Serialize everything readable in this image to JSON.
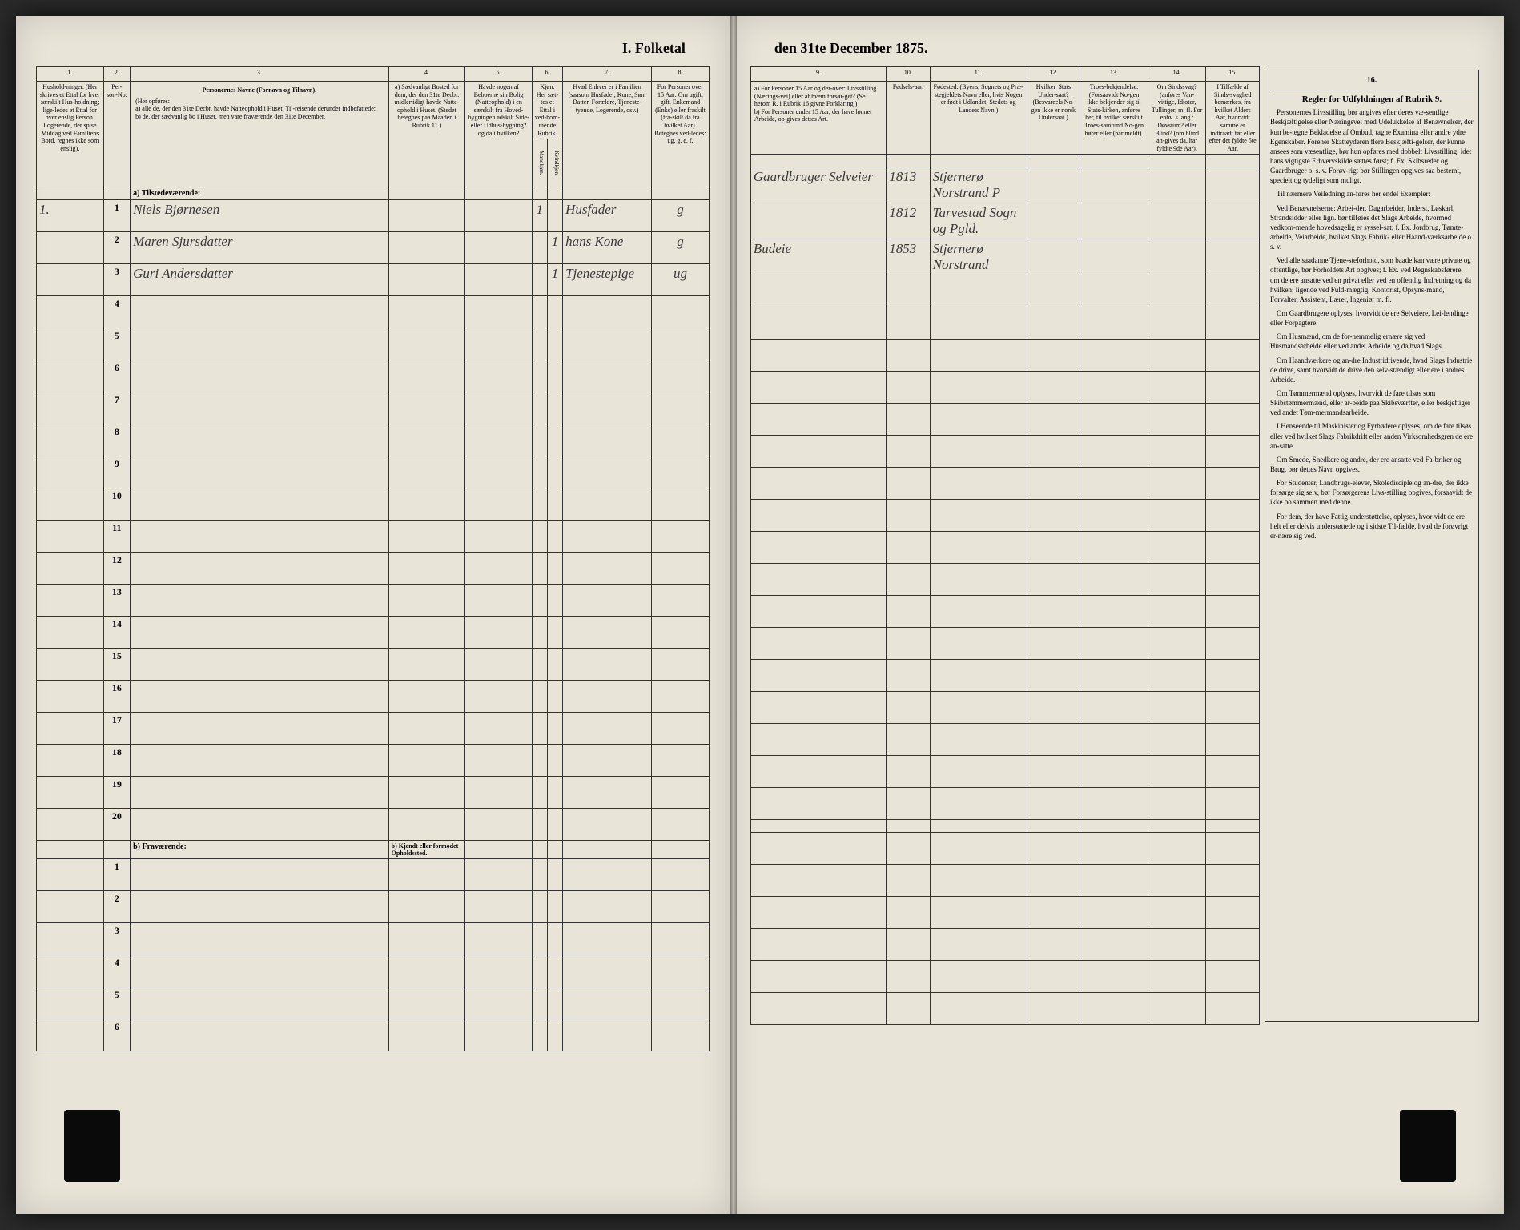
{
  "title_left": "I. Folketal",
  "title_right": "den 31te December 1875.",
  "columns_left": {
    "c1": "1.",
    "c2": "2.",
    "c3": "3.",
    "c4": "4.",
    "c5": "5.",
    "c6": "6.",
    "c7": "7.",
    "c8": "8."
  },
  "columns_right": {
    "c9": "9.",
    "c10": "10.",
    "c11": "11.",
    "c12": "12.",
    "c13": "13.",
    "c14": "14.",
    "c15": "15.",
    "c16": "16."
  },
  "headers_left": {
    "h1": "Hushold-ninger. (Her skrives et Ettal for hver særskilt Hus-holdning; lige-ledes et Ettal for hver enslig Person. Logerende, der spise Middag ved Familiens Bord, regnes ikke som enslig).",
    "h2": "Per-son-No.",
    "h3_main": "Personernes Navne (Fornavn og Tilnavn).",
    "h3_sub": "(Her opføres:\na) alle de, der den 31te Decbr. havde Natteophold i Huset, Til-reisende derunder indbefattede;\nb) de, der sædvanlig bo i Huset, men vare fraværende den 31te December.",
    "h4": "a) Sædvanligt Bosted for dem, der den 31te Decbr. midlertidigt havde Natte-ophold i Huset. (Stedet betegnes paa Maaden i Rubrik 11.)",
    "h5": "Havde nogen af Beboerne sin Bolig (Natteophold) i en særskilt fra Hoved-bygningen adskilt Side- eller Udhus-bygning? og da i hvilken?",
    "h6a": "Kjøn: Her sæt-tes et Ettal i ved-hom-mende Rubrik.",
    "h6_m": "Mandkjøn.",
    "h6_k": "Kvindkjøn.",
    "h7": "Hvad Enhver er i Familien (saasom Husfader, Kone, Søn, Datter, Forældre, Tjeneste-tyende, Logerende, osv.)",
    "h8": "For Personer over 15 Aar: Om ugift, gift, Enkemand (Enke) eller fraskilt (fra-skilt da fra hvilket Aar). Betegnes ved-ledes: ug, g, e, f."
  },
  "headers_right": {
    "h9": "a) For Personer 15 Aar og der-over: Livsstilling (Nærings-vei) eller af hvem forsør-get? (Se herom R. i Rubrik 16 givne Forklaring.)\nb) For Personer under 15 Aar, der have lønnet Arbeide, op-gives dettes Art.",
    "h10": "Fødsels-aar.",
    "h11": "Fødested. (Byens, Sognets og Præ-stegjeldets Navn eller, hvis Nogen er født i Udlandet, Stedets og Landets Navn.)",
    "h12": "Hvilken Stats Under-saat? (Besvareels No-gen ikke er norsk Undersaat.)",
    "h13": "Troes-bekjendelse. (Forsaavidt No-gen ikke bekjender sig til Stats-kirken, anføres her, til hvilket særskilt Troes-samfund No-gen hører eller (har meldt).",
    "h14": "Om Sindssvag? (anføres Van-vittige, Idioter, Tullinger, m. fl.\nFor enhv. s. ang.: Døvstum? eller Blind? (om blind an-gives da, har fyldte 9de Aar).",
    "h15": "I Tilfælde af Sinds-svaghed bemærkes, fra hvilket Alders Aar, hvorvidt samme er indtraadt før eller efter det fyldte 5te Aar."
  },
  "section_a": "a) Tilstedeværende:",
  "section_b": "b) Fraværende:",
  "section_b2": "b) Kjendt eller formodet Opholdssted.",
  "rows": [
    {
      "num": "1",
      "name": "Niels Bjørnesen",
      "c5": "",
      "c6m": "1",
      "c6k": "",
      "c7": "Husfader",
      "c8": "g",
      "c9": "Gaardbruger Selveier",
      "c10": "1813",
      "c11": "Stjernerø Norstrand P"
    },
    {
      "num": "2",
      "name": "Maren Sjursdatter",
      "c5": "",
      "c6m": "",
      "c6k": "1",
      "c7": "hans Kone",
      "c8": "g",
      "c9": "",
      "c10": "1812",
      "c11": "Tarvestad Sogn og Pgld."
    },
    {
      "num": "3",
      "name": "Guri Andersdatter",
      "c5": "",
      "c6m": "",
      "c6k": "1",
      "c7": "Tjenestepige",
      "c8": "ug",
      "c9": "Budeie",
      "c10": "1853",
      "c11": "Stjernerø Norstrand"
    }
  ],
  "empty_rows_a": [
    "4",
    "5",
    "6",
    "7",
    "8",
    "9",
    "10",
    "11",
    "12",
    "13",
    "14",
    "15",
    "16",
    "17",
    "18",
    "19",
    "20"
  ],
  "empty_rows_b": [
    "1",
    "2",
    "3",
    "4",
    "5",
    "6"
  ],
  "instructions": {
    "title": "Regler for Udfyldningen af Rubrik 9.",
    "paragraphs": [
      "Personernes Livsstilling bør angives efter deres væ-sentlige Beskjæftigelse eller Næringsvei med Udelukkelse af Benævnelser, der kun be-tegne Bekladelse af Ombud, tagne Examina eller andre ydre Egenskaber. Forener Skatteyderen flere Beskjæfti-gelser, der kunne ansees som væsentlige, bør hun opføres med dobbelt Livsstilling, idet hans vigtigste Erhvervskilde sættes først; f. Ex. Skibsreder og Gaardbruger o. s. v. Forøv-rigt bør Stillingen opgives saa bestemt, specielt og tydeligt som muligt.",
      "Til nærmere Veiledning an-føres her endel Exempler:",
      "Ved Benævnelserne: Arbei-der, Dagarbeider, Inderst, Løskarl, Strandsidder eller lign. bør tilføies det Slags Arbeide, hvormed vedkom-mende hovedsagelig er syssel-sat; f. Ex. Jordbrug, Tømte-arbeide, Veiarbeide, hvilket Slags Fabrik- eller Haand-værksarbeide o. s. v.",
      "Ved alle saadanne Tjene-steforhold, som baade kan være private og offentlige, bør Forholdets Art opgives; f. Ex. ved Regnskabsførere, om de ere ansatte ved en privat eller ved en offentlig Indretning og da hvilken; ligende ved Fuld-mægtig, Kontorist, Opsyns-mand, Forvalter, Assistent, Lærer, Ingeniør m. fl.",
      "Om Gaardbrugere oplyses, hvorvidt de ere Selveiere, Lei-lendinge eller Forpagtere.",
      "Om Husmænd, om de for-nemmelig ernære sig ved Husmandsarbeide eller ved andet Arbeide og da hvad Slags.",
      "Om Haandværkere og an-dre Industridrivende, hvad Slags Industrie de drive, samt hvorvidt de drive den selv-stændigt eller ere i andres Arbeide.",
      "Om Tømmermænd oplyses, hvorvidt de fare tilsøs som Skibstømmermænd, eller ar-beide paa Skibsværfter, eller beskjeftiger ved andet Tøm-mermandsarbeide.",
      "I Henseende til Maskinister og Fyrbødere oplyses, om de fare tilsøs eller ved hvilket Slags Fabrikdrift eller anden Virksomhedsgren de ere an-satte.",
      "Om Smede, Snedkere og andre, der ere ansatte ved Fa-briker og Brug, bør dettes Navn opgives.",
      "For Studenter, Landbrugs-elever, Skoledisciple og an-dre, der ikke forsørge sig selv, bør Forsørgerens Livs-stilling opgives, forsaavidt de ikke bo sammen med denne.",
      "For dem, der have Fattig-understøttelse, oplyses, hvor-vidt de ere helt eller delvis understøttede og i sidste Til-fælde, hvad de forøvrigt er-nære sig ved."
    ]
  }
}
